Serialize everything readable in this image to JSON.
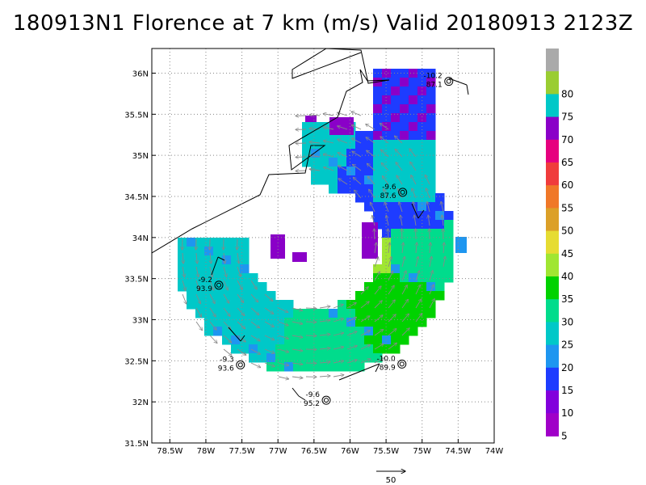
{
  "title": "180913N1 Florence at 7 km (m/s) Valid 20180913 2123Z",
  "map": {
    "lon_range": [
      -78.75,
      -74.0
    ],
    "lat_range": [
      31.5,
      36.3
    ],
    "lon_ticks": [
      {
        "v": -78.5,
        "label": "78.5W"
      },
      {
        "v": -78,
        "label": "78W"
      },
      {
        "v": -77.5,
        "label": "77.5W"
      },
      {
        "v": -77,
        "label": "77W"
      },
      {
        "v": -76.5,
        "label": "76.5W"
      },
      {
        "v": -76,
        "label": "76W"
      },
      {
        "v": -75.5,
        "label": "75.5W"
      },
      {
        "v": -75,
        "label": "75W"
      },
      {
        "v": -74.5,
        "label": "74.5W"
      },
      {
        "v": -74,
        "label": "74W"
      }
    ],
    "lat_ticks": [
      {
        "v": 31.5,
        "label": "31.5N"
      },
      {
        "v": 32,
        "label": "32N"
      },
      {
        "v": 32.5,
        "label": "32.5N"
      },
      {
        "v": 33,
        "label": "33N"
      },
      {
        "v": 33.5,
        "label": "33.5N"
      },
      {
        "v": 34,
        "label": "34N"
      },
      {
        "v": 34.5,
        "label": "34.5N"
      },
      {
        "v": 35,
        "label": "35N"
      },
      {
        "v": 35.5,
        "label": "35.5N"
      },
      {
        "v": 36,
        "label": "36N"
      }
    ],
    "grid": "dotted"
  },
  "colorbar": {
    "levels": [
      {
        "label": "",
        "color": "#aaaaaa"
      },
      {
        "label": "80",
        "color": "#9acd32"
      },
      {
        "label": "75",
        "color": "#00c8c8"
      },
      {
        "label": "70",
        "color": "#8a00c8"
      },
      {
        "label": "65",
        "color": "#e6007e"
      },
      {
        "label": "60",
        "color": "#f03c3c"
      },
      {
        "label": "55",
        "color": "#f07828"
      },
      {
        "label": "50",
        "color": "#dca028"
      },
      {
        "label": "45",
        "color": "#e6dc32"
      },
      {
        "label": "40",
        "color": "#a0e632"
      },
      {
        "label": "35",
        "color": "#00d200"
      },
      {
        "label": "30",
        "color": "#00dc8c"
      },
      {
        "label": "25",
        "color": "#00c8c8"
      },
      {
        "label": "20",
        "color": "#1e96f0"
      },
      {
        "label": "15",
        "color": "#1e3cff"
      },
      {
        "label": "10",
        "color": "#8200dc"
      },
      {
        "label": "5",
        "color": "#a000c8"
      }
    ]
  },
  "annotations": [
    {
      "lon": -74.63,
      "lat": 35.9,
      "temp": "-10.2",
      "press": "87.1"
    },
    {
      "lon": -75.27,
      "lat": 34.55,
      "temp": "-9.6",
      "press": "87.6"
    },
    {
      "lon": -77.82,
      "lat": 33.42,
      "temp": "-9.2",
      "press": "93.9"
    },
    {
      "lon": -75.28,
      "lat": 32.46,
      "temp": "-10.0",
      "press": "89.9"
    },
    {
      "lon": -77.52,
      "lat": 32.45,
      "temp": "-9.3",
      "press": "93.6"
    },
    {
      "lon": -76.33,
      "lat": 32.02,
      "temp": "-9.6",
      "press": "95.2"
    }
  ],
  "reference_vector": {
    "label": "50"
  }
}
